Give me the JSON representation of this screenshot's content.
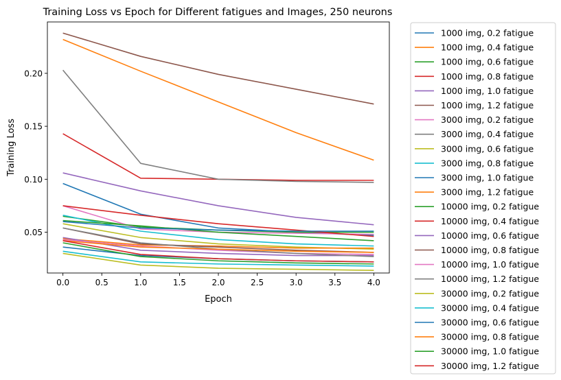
{
  "chart_data": {
    "type": "line",
    "title": "Training Loss vs Epoch for Different fatigues and Images, 250 neurons",
    "xlabel": "Epoch",
    "ylabel": "Training Loss",
    "xlim": [
      -0.2,
      4.2
    ],
    "ylim": [
      0.0115,
      0.2485
    ],
    "xticks": [
      0.0,
      0.5,
      1.0,
      1.5,
      2.0,
      2.5,
      3.0,
      3.5,
      4.0
    ],
    "xtick_labels": [
      "0.0",
      "0.5",
      "1.0",
      "1.5",
      "2.0",
      "2.5",
      "3.0",
      "3.5",
      "4.0"
    ],
    "yticks": [
      0.05,
      0.1,
      0.15,
      0.2
    ],
    "ytick_labels": [
      "0.05",
      "0.10",
      "0.15",
      "0.20"
    ],
    "grid": false,
    "legend_position": "outside-right",
    "x": [
      0,
      1,
      2,
      3,
      4
    ],
    "series": [
      {
        "name": "1000 img, 0.2 fatigue",
        "color": "#1f77b4",
        "values": [
          0.096,
          0.067,
          0.054,
          0.05,
          0.047
        ]
      },
      {
        "name": "1000 img, 0.4 fatigue",
        "color": "#ff7f0e",
        "values": [
          0.232,
          0.202,
          0.173,
          0.144,
          0.118
        ]
      },
      {
        "name": "1000 img, 0.6 fatigue",
        "color": "#2ca02c",
        "values": [
          0.065,
          0.055,
          0.052,
          0.05,
          0.05
        ]
      },
      {
        "name": "1000 img, 0.8 fatigue",
        "color": "#d62728",
        "values": [
          0.143,
          0.101,
          0.1,
          0.099,
          0.099
        ]
      },
      {
        "name": "1000 img, 1.0 fatigue",
        "color": "#9467bd",
        "values": [
          0.106,
          0.089,
          0.075,
          0.064,
          0.057
        ]
      },
      {
        "name": "1000 img, 1.2 fatigue",
        "color": "#8c564b",
        "values": [
          0.238,
          0.216,
          0.199,
          0.185,
          0.171
        ]
      },
      {
        "name": "3000 img, 0.2 fatigue",
        "color": "#e377c2",
        "values": [
          0.075,
          0.053,
          0.05,
          0.049,
          0.048
        ]
      },
      {
        "name": "3000 img, 0.4 fatigue",
        "color": "#7f7f7f",
        "values": [
          0.203,
          0.115,
          0.1,
          0.098,
          0.097
        ]
      },
      {
        "name": "3000 img, 0.6 fatigue",
        "color": "#bcbd22",
        "values": [
          0.058,
          0.045,
          0.039,
          0.036,
          0.034
        ]
      },
      {
        "name": "3000 img, 0.8 fatigue",
        "color": "#17becf",
        "values": [
          0.066,
          0.051,
          0.043,
          0.039,
          0.037
        ]
      },
      {
        "name": "3000 img, 1.0 fatigue",
        "color": "#1f77b4",
        "values": [
          0.036,
          0.028,
          0.025,
          0.023,
          0.022
        ]
      },
      {
        "name": "3000 img, 1.2 fatigue",
        "color": "#ff7f0e",
        "values": [
          0.044,
          0.038,
          0.037,
          0.035,
          0.035
        ]
      },
      {
        "name": "10000 img, 0.2 fatigue",
        "color": "#2ca02c",
        "values": [
          0.061,
          0.056,
          0.05,
          0.046,
          0.042
        ]
      },
      {
        "name": "10000 img, 0.4 fatigue",
        "color": "#d62728",
        "values": [
          0.075,
          0.066,
          0.058,
          0.052,
          0.046
        ]
      },
      {
        "name": "10000 img, 0.6 fatigue",
        "color": "#9467bd",
        "values": [
          0.045,
          0.033,
          0.03,
          0.028,
          0.028
        ]
      },
      {
        "name": "10000 img, 0.8 fatigue",
        "color": "#8c564b",
        "values": [
          0.054,
          0.039,
          0.036,
          0.033,
          0.031
        ]
      },
      {
        "name": "10000 img, 1.0 fatigue",
        "color": "#e377c2",
        "values": [
          0.043,
          0.037,
          0.033,
          0.03,
          0.029
        ]
      },
      {
        "name": "10000 img, 1.2 fatigue",
        "color": "#7f7f7f",
        "values": [
          0.054,
          0.04,
          0.034,
          0.03,
          0.027
        ]
      },
      {
        "name": "30000 img, 0.2 fatigue",
        "color": "#bcbd22",
        "values": [
          0.03,
          0.019,
          0.016,
          0.015,
          0.014
        ]
      },
      {
        "name": "30000 img, 0.4 fatigue",
        "color": "#17becf",
        "values": [
          0.032,
          0.022,
          0.02,
          0.019,
          0.018
        ]
      },
      {
        "name": "30000 img, 0.6 fatigue",
        "color": "#1f77b4",
        "values": [
          0.06,
          0.054,
          0.052,
          0.051,
          0.051
        ]
      },
      {
        "name": "30000 img, 0.8 fatigue",
        "color": "#ff7f0e",
        "values": [
          0.042,
          0.036,
          0.034,
          0.032,
          0.031
        ]
      },
      {
        "name": "30000 img, 1.0 fatigue",
        "color": "#2ca02c",
        "values": [
          0.04,
          0.027,
          0.023,
          0.021,
          0.02
        ]
      },
      {
        "name": "30000 img, 1.2 fatigue",
        "color": "#d62728",
        "values": [
          0.042,
          0.029,
          0.025,
          0.023,
          0.022
        ]
      }
    ]
  }
}
